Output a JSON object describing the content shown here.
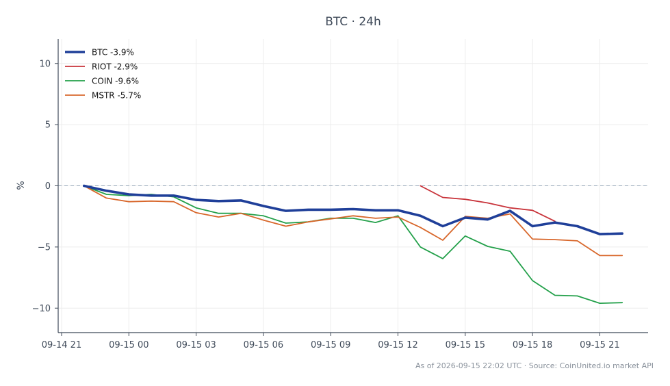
{
  "chart_data": {
    "type": "line",
    "title": "BTC · 24h",
    "ylabel": "%",
    "xlabel": "",
    "x_tick_labels": [
      "09-14 21",
      "09-15 00",
      "09-15 03",
      "09-15 06",
      "09-15 09",
      "09-15 12",
      "09-15 15",
      "09-15 18",
      "09-15 21"
    ],
    "y_ticks": [
      10,
      5,
      0,
      -5,
      -10
    ],
    "ylim": [
      -12,
      12
    ],
    "grid": true,
    "legend_position": "top-left",
    "zero_reference_line": true,
    "x": [
      "09-14 22:00",
      "09-14 23:00",
      "09-15 00:00",
      "09-15 01:00",
      "09-15 02:00",
      "09-15 03:00",
      "09-15 04:00",
      "09-15 05:00",
      "09-15 06:00",
      "09-15 07:00",
      "09-15 08:00",
      "09-15 09:00",
      "09-15 10:00",
      "09-15 11:00",
      "09-15 12:00",
      "09-15 13:00",
      "09-15 14:00",
      "09-15 15:00",
      "09-15 16:00",
      "09-15 17:00",
      "09-15 18:00",
      "09-15 19:00",
      "09-15 20:00",
      "09-15 21:00",
      "09-15 22:00"
    ],
    "series": [
      {
        "name": "BTC -3.9%",
        "color": "#1f3f99",
        "values": [
          0.0,
          -0.4,
          -0.7,
          -0.8,
          -0.8,
          -1.15,
          -1.25,
          -1.2,
          -1.65,
          -2.05,
          -1.95,
          -1.95,
          -1.9,
          -2.0,
          -2.0,
          -2.45,
          -3.3,
          -2.6,
          -2.75,
          -2.05,
          -3.3,
          -3.0,
          -3.3,
          -3.95,
          -3.9
        ]
      },
      {
        "name": "RIOT -2.9%",
        "color": "#c8333a",
        "values": [
          null,
          null,
          null,
          null,
          null,
          null,
          null,
          null,
          null,
          null,
          null,
          null,
          null,
          null,
          null,
          0.0,
          -0.95,
          -1.1,
          -1.4,
          -1.8,
          -2.0,
          -2.9,
          null,
          null,
          null
        ]
      },
      {
        "name": "COIN -9.6%",
        "color": "#23a04a",
        "values": [
          0.0,
          -0.7,
          -0.8,
          -0.7,
          -0.9,
          -1.8,
          -2.25,
          -2.25,
          -2.45,
          -3.05,
          -2.95,
          -2.65,
          -2.65,
          -3.0,
          -2.45,
          -5.0,
          -5.95,
          -4.1,
          -4.95,
          -5.35,
          -7.75,
          -8.95,
          -9.0,
          -9.6,
          -9.55
        ]
      },
      {
        "name": "MSTR -5.7%",
        "color": "#d8672b",
        "values": [
          0.0,
          -1.0,
          -1.3,
          -1.25,
          -1.3,
          -2.2,
          -2.55,
          -2.25,
          -2.8,
          -3.3,
          -2.95,
          -2.7,
          -2.45,
          -2.65,
          -2.55,
          -3.4,
          -4.45,
          -2.5,
          -2.65,
          -2.3,
          -4.35,
          -4.4,
          -4.5,
          -5.7,
          -5.7
        ]
      }
    ]
  },
  "footer": {
    "text": "As of 2026-09-15 22:02 UTC · Source: CoinUnited.io market API"
  }
}
